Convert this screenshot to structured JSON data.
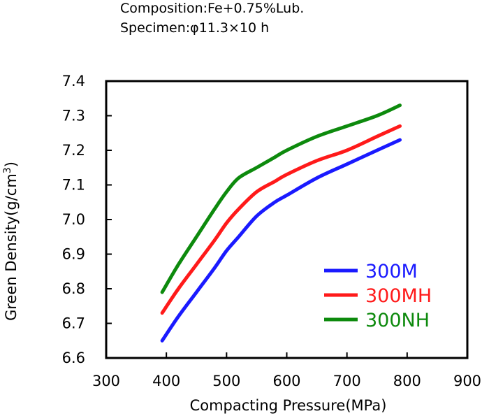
{
  "header": {
    "composition": "Composition:Fe+0.75%Lub.",
    "specimen": "Specimen:φ11.3×10 h"
  },
  "chart_data": {
    "type": "line",
    "xlabel": "Compacting Pressure(MPa)",
    "ylabel": "Green Density(g/cm",
    "ylabel_sup": "3",
    "ylabel_end": ")",
    "xlim": [
      300,
      900
    ],
    "ylim": [
      6.6,
      7.4
    ],
    "xticks": [
      300,
      400,
      500,
      600,
      700,
      800,
      900
    ],
    "yticks": [
      6.6,
      6.7,
      6.8,
      6.9,
      7.0,
      7.1,
      7.2,
      7.3,
      7.4
    ],
    "ytick_labels": [
      "6.6",
      "6.7",
      "6.8",
      "6.9",
      "7.0",
      "7.1",
      "7.2",
      "7.3",
      "7.4"
    ],
    "grid": false,
    "legend_position": "bottom-right",
    "series": [
      {
        "name": "300M",
        "color": "#1a1aff",
        "x": [
          393,
          420,
          450,
          480,
          500,
          520,
          550,
          580,
          600,
          650,
          700,
          750,
          788
        ],
        "y": [
          6.65,
          6.72,
          6.79,
          6.86,
          6.91,
          6.95,
          7.01,
          7.05,
          7.07,
          7.12,
          7.16,
          7.2,
          7.23
        ]
      },
      {
        "name": "300MH",
        "color": "#ff1a1a",
        "x": [
          393,
          420,
          450,
          480,
          500,
          520,
          550,
          580,
          600,
          650,
          700,
          750,
          788
        ],
        "y": [
          6.73,
          6.8,
          6.87,
          6.94,
          6.99,
          7.03,
          7.08,
          7.11,
          7.13,
          7.17,
          7.2,
          7.24,
          7.27
        ]
      },
      {
        "name": "300NH",
        "color": "#0d8a0d",
        "x": [
          393,
          420,
          450,
          480,
          500,
          520,
          550,
          580,
          600,
          650,
          700,
          750,
          788
        ],
        "y": [
          6.79,
          6.87,
          6.95,
          7.03,
          7.08,
          7.12,
          7.15,
          7.18,
          7.2,
          7.24,
          7.27,
          7.3,
          7.33
        ]
      }
    ]
  }
}
